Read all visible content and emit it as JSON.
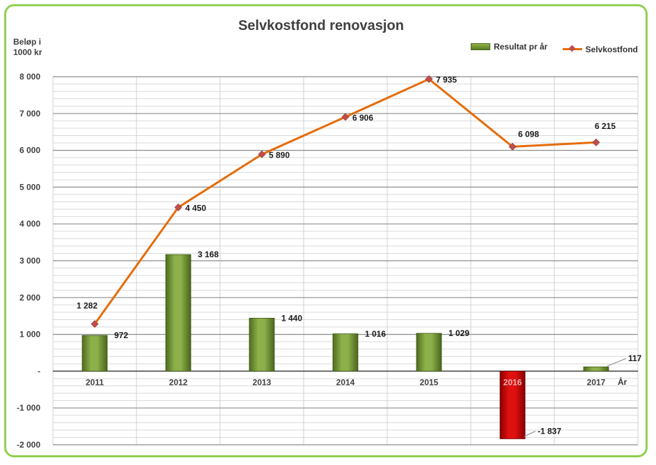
{
  "chart_data": {
    "type": "bar",
    "title": "Selvkostfond renovasjon",
    "ylabel": "Beløp i\n1000 kr",
    "xlabel": "År",
    "ylim": [
      -2000,
      8000
    ],
    "yticks": [
      -2000,
      -1000,
      0,
      1000,
      2000,
      3000,
      4000,
      5000,
      6000,
      7000,
      8000
    ],
    "ytick_labels": [
      "-2 000",
      "-1 000",
      "-",
      "1 000",
      "2 000",
      "3 000",
      "4 000",
      "5 000",
      "6 000",
      "7 000",
      "8 000"
    ],
    "grid": true,
    "legend_position": "top-right",
    "categories": [
      "2011",
      "2012",
      "2013",
      "2014",
      "2015",
      "2016",
      "2017"
    ],
    "series": [
      {
        "name": "Resultat pr år",
        "type": "bar",
        "values": [
          972,
          3168,
          1440,
          1016,
          1029,
          -1837,
          117
        ],
        "labels": [
          "972",
          "3 168",
          "1 440",
          "1 016",
          "1 029",
          "-1 837",
          "117"
        ],
        "color": "#77933c",
        "negative_color": "#c00000"
      },
      {
        "name": "Selvkostfond",
        "type": "line",
        "values": [
          1282,
          4450,
          5890,
          6906,
          7935,
          6098,
          6215
        ],
        "labels": [
          "1 282",
          "4 450",
          "5 890",
          "6 906",
          "7 935",
          "6 098",
          "6 215"
        ],
        "color": "#e46c0a",
        "marker_color": "#c0504d"
      }
    ]
  }
}
